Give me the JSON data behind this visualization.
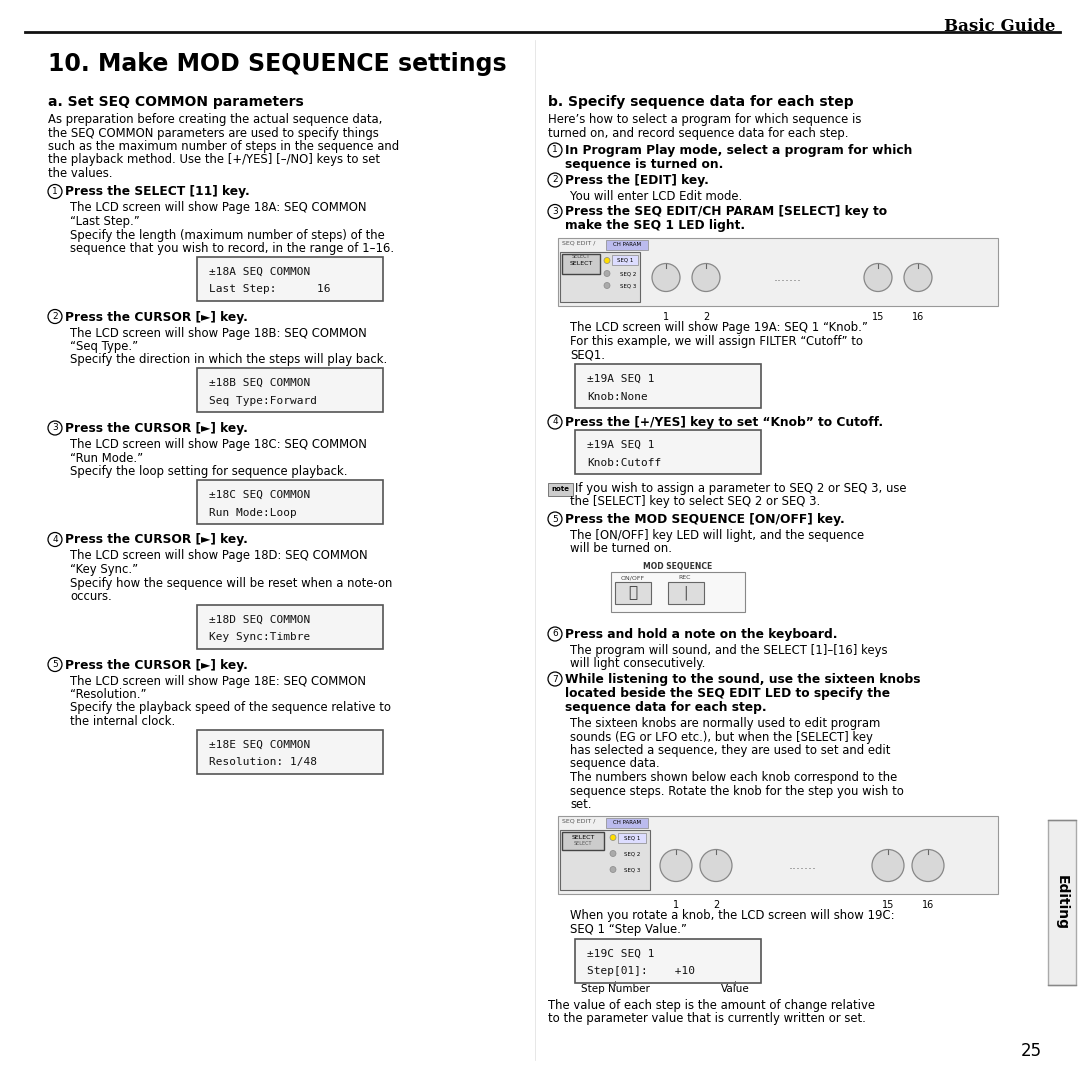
{
  "bg_color": "#ffffff",
  "header": "Basic Guide",
  "title": "10. Make MOD SEQUENCE settings",
  "page_num": "25",
  "sidebar": "Editing",
  "sec_a_title": "a. Set SEQ COMMON parameters",
  "sec_a_intro": [
    "As preparation before creating the actual sequence data,",
    "the SEQ COMMON parameters are used to specify things",
    "such as the maximum number of steps in the sequence and",
    "the playback method. Use the [+/YES] [–/NO] keys to set",
    "the values."
  ],
  "steps_a": [
    {
      "num": "1",
      "bold": "Press the SELECT [11] key.",
      "body": [
        "The LCD screen will show Page 18A: SEQ COMMON",
        "“Last Step.”",
        "Specify the length (maximum number of steps) of the",
        "sequence that you wish to record, in the range of 1–16."
      ],
      "lcd": "±18A SEQ COMMON\nLast Step:      16"
    },
    {
      "num": "2",
      "bold": "Press the CURSOR [►] key.",
      "body": [
        "The LCD screen will show Page 18B: SEQ COMMON",
        "“Seq Type.”",
        "Specify the direction in which the steps will play back."
      ],
      "lcd": "±18B SEQ COMMON\nSeq Type:Forward"
    },
    {
      "num": "3",
      "bold": "Press the CURSOR [►] key.",
      "body": [
        "The LCD screen will show Page 18C: SEQ COMMON",
        "“Run Mode.”",
        "Specify the loop setting for sequence playback."
      ],
      "lcd": "±18C SEQ COMMON\nRun Mode:Loop"
    },
    {
      "num": "4",
      "bold": "Press the CURSOR [►] key.",
      "body": [
        "The LCD screen will show Page 18D: SEQ COMMON",
        "“Key Sync.”",
        "Specify how the sequence will be reset when a note-on",
        "occurs."
      ],
      "lcd": "±18D SEQ COMMON\nKey Sync:Timbre"
    },
    {
      "num": "5",
      "bold": "Press the CURSOR [►] key.",
      "body": [
        "The LCD screen will show Page 18E: SEQ COMMON",
        "“Resolution.”",
        "Specify the playback speed of the sequence relative to",
        "the internal clock."
      ],
      "lcd": "±18E SEQ COMMON\nResolution: 1/48"
    }
  ],
  "sec_b_title": "b. Specify sequence data for each step",
  "sec_b_intro": [
    "Here’s how to select a program for which sequence is",
    "turned on, and record sequence data for each step."
  ],
  "steps_b": [
    {
      "num": "1",
      "bold": [
        "In Program Play mode, select a program for which",
        "sequence is turned on."
      ],
      "body": []
    },
    {
      "num": "2",
      "bold": [
        "Press the [EDIT] key."
      ],
      "body": [
        "You will enter LCD Edit mode."
      ]
    },
    {
      "num": "3",
      "bold": [
        "Press the SEQ EDIT/CH PARAM [SELECT] key to",
        "make the SEQ 1 LED light."
      ],
      "body": [],
      "diagram": "panel1",
      "after": [
        "The LCD screen will show Page 19A: SEQ 1 “Knob.”",
        "For this example, we will assign FILTER “Cutoff” to",
        "SEQ1."
      ],
      "lcd": "±19A SEQ 1\nKnob:None"
    },
    {
      "num": "4",
      "bold": [
        "Press the [+/YES] key to set “Knob” to Cutoff."
      ],
      "body": [],
      "lcd": "±19A SEQ 1\nKnob:Cutoff"
    },
    {
      "num": "note",
      "body": [
        "If you wish to assign a parameter to SEQ 2 or SEQ 3, use",
        "the [SELECT] key to select SEQ 2 or SEQ 3."
      ]
    },
    {
      "num": "5",
      "bold": [
        "Press the MOD SEQUENCE [ON/OFF] key."
      ],
      "body": [
        "The [ON/OFF] key LED will light, and the sequence",
        "will be turned on."
      ],
      "diagram": "mod_panel"
    },
    {
      "num": "6",
      "bold": [
        "Press and hold a note on the keyboard."
      ],
      "body": [
        "The program will sound, and the SELECT [1]–[16] keys",
        "will light consecutively."
      ]
    },
    {
      "num": "7",
      "bold": [
        "While listening to the sound, use the sixteen knobs",
        "located beside the SEQ EDIT LED to specify the",
        "sequence data for each step."
      ],
      "body": [
        "The sixteen knobs are normally used to edit program",
        "sounds (EG or LFO etc.), but when the [SELECT] key",
        "has selected a sequence, they are used to set and edit",
        "sequence data.",
        "The numbers shown below each knob correspond to the",
        "sequence steps. Rotate the knob for the step you wish to",
        "set."
      ],
      "diagram": "panel2",
      "after": [
        "When you rotate a knob, the LCD screen will show 19C:",
        "SEQ 1 “Step Value.”"
      ],
      "lcd": "±19C SEQ 1\nStep[01]:    +10",
      "lcd_labels": [
        "Step Number",
        "Value"
      ],
      "final": [
        "The value of each step is the amount of change relative",
        "to the parameter value that is currently written or set."
      ]
    }
  ]
}
